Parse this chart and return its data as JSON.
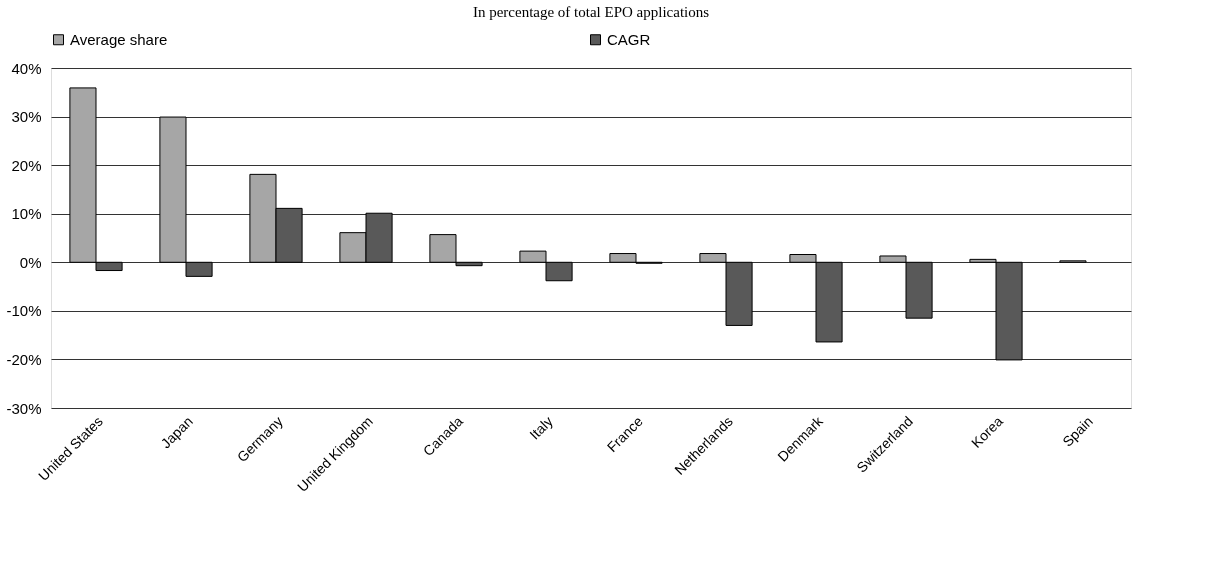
{
  "chart_data": {
    "type": "bar",
    "title": "In percentage of total EPO applications",
    "categories": [
      "United States",
      "Japan",
      "Germany",
      "United Kingdom",
      "Canada",
      "Italy",
      "France",
      "Netherlands",
      "Denmark",
      "Switzerland",
      "Korea",
      "Spain"
    ],
    "series": [
      {
        "name": "Average share",
        "color": "#a6a6a6",
        "values": [
          35.9,
          29.9,
          18.1,
          6.1,
          5.7,
          2.3,
          1.8,
          1.8,
          1.6,
          1.3,
          0.6,
          0.3
        ]
      },
      {
        "name": "CAGR",
        "color": "#595959",
        "values": [
          -1.7,
          -2.9,
          11.1,
          10.1,
          -0.7,
          -3.8,
          -0.2,
          -13.0,
          -16.4,
          -11.5,
          -20.1,
          null
        ]
      }
    ],
    "ylim": [
      -30,
      40
    ],
    "yticks": [
      {
        "value": -30,
        "label": "-30%"
      },
      {
        "value": -20,
        "label": "-20%"
      },
      {
        "value": -10,
        "label": "-10%"
      },
      {
        "value": 0,
        "label": "0%"
      },
      {
        "value": 10,
        "label": "10%"
      },
      {
        "value": 20,
        "label": "20%"
      },
      {
        "value": 30,
        "label": "30%"
      },
      {
        "value": 40,
        "label": "40%"
      }
    ],
    "grid": "y",
    "legend": "top"
  }
}
